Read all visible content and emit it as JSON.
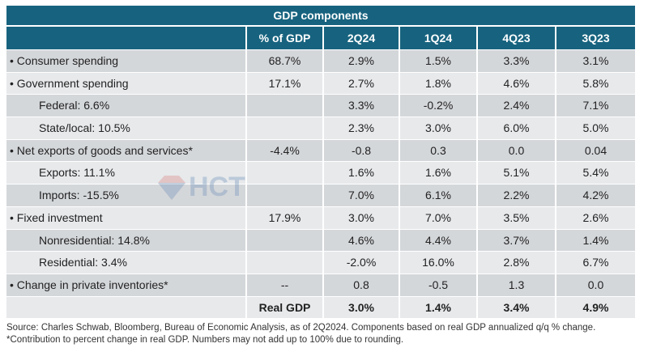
{
  "title": "GDP components",
  "headers": [
    "",
    "% of GDP",
    "2Q24",
    "1Q24",
    "4Q23",
    "3Q23"
  ],
  "rows": [
    {
      "label": "• Consumer spending",
      "indent": false,
      "cells": [
        "68.7%",
        "2.9%",
        "1.5%",
        "3.3%",
        "3.1%"
      ]
    },
    {
      "label": "• Government spending",
      "indent": false,
      "cells": [
        "17.1%",
        "2.7%",
        "1.8%",
        "4.6%",
        "5.8%"
      ]
    },
    {
      "label": "Federal: 6.6%",
      "indent": true,
      "cells": [
        "",
        "3.3%",
        "-0.2%",
        "2.4%",
        "7.1%"
      ]
    },
    {
      "label": "State/local: 10.5%",
      "indent": true,
      "cells": [
        "",
        "2.3%",
        "3.0%",
        "6.0%",
        "5.0%"
      ]
    },
    {
      "label": "• Net exports of goods and services*",
      "indent": false,
      "cells": [
        "-4.4%",
        "-0.8",
        "0.3",
        "0.0",
        "0.04"
      ]
    },
    {
      "label": "Exports: 11.1%",
      "indent": true,
      "cells": [
        "",
        "1.6%",
        "1.6%",
        "5.1%",
        "5.4%"
      ]
    },
    {
      "label": "Imports: -15.5%",
      "indent": true,
      "cells": [
        "",
        "7.0%",
        "6.1%",
        "2.2%",
        "4.2%"
      ]
    },
    {
      "label": "• Fixed investment",
      "indent": false,
      "cells": [
        "17.9%",
        "3.0%",
        "7.0%",
        "3.5%",
        "2.6%"
      ]
    },
    {
      "label": "Nonresidential: 14.8%",
      "indent": true,
      "cells": [
        "",
        "4.6%",
        "4.4%",
        "3.7%",
        "1.4%"
      ]
    },
    {
      "label": "Residential: 3.4%",
      "indent": true,
      "cells": [
        "",
        "-2.0%",
        "16.0%",
        "2.8%",
        "6.7%"
      ]
    },
    {
      "label": "• Change in private inventories*",
      "indent": false,
      "cells": [
        "--",
        "0.8",
        "-0.5",
        "1.3",
        "0.0"
      ]
    },
    {
      "label": "",
      "indent": false,
      "bold": true,
      "cells": [
        "Real GDP",
        "3.0%",
        "1.4%",
        "3.4%",
        "4.9%"
      ]
    }
  ],
  "footnote": "Source: Charles Schwab, Bloomberg, Bureau of Economic Analysis, as of 2Q2024. Components based on real GDP annualized q/q % change. *Contribution to percent change in real GDP. Numbers may not add up to 100% due to rounding.",
  "watermark": "HCT",
  "colors": {
    "header": "#17637f",
    "row_dark": "#d4d7da",
    "row_light": "#e7e9eb"
  }
}
